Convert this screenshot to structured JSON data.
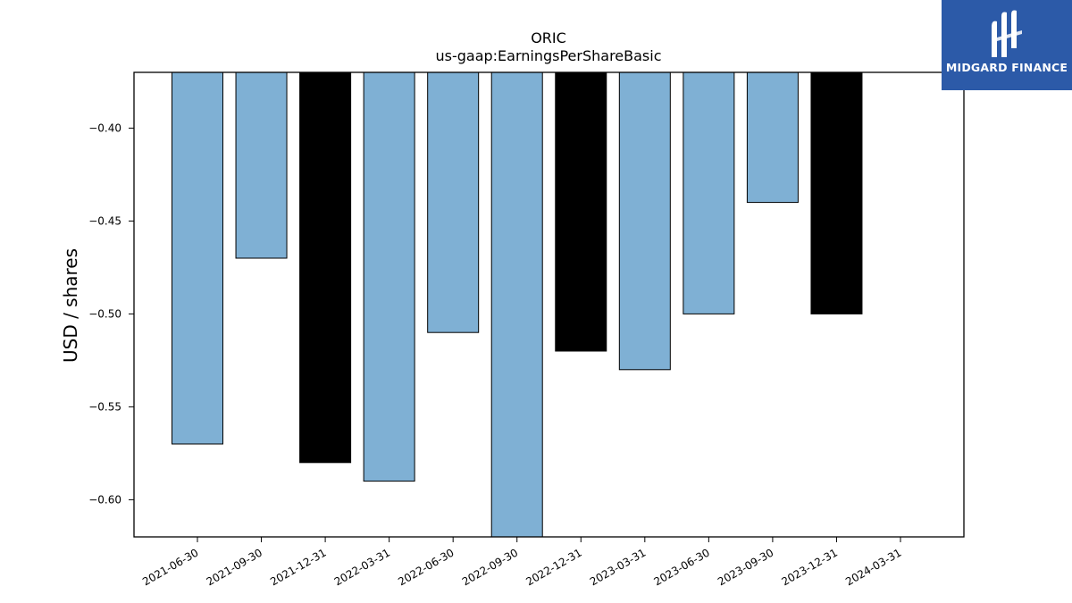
{
  "chart_data": {
    "type": "bar",
    "title": "ORIC",
    "subtitle": "us-gaap:EarningsPerShareBasic",
    "ylabel": "USD / shares",
    "xlabel": "",
    "ylim": [
      -0.62,
      -0.37
    ],
    "yticks": [
      -0.4,
      -0.45,
      -0.5,
      -0.55,
      -0.6
    ],
    "ytick_labels": [
      "−0.40",
      "−0.45",
      "−0.50",
      "−0.55",
      "−0.60"
    ],
    "categories": [
      "2021-06-30",
      "2021-09-30",
      "2021-12-31",
      "2022-03-31",
      "2022-06-30",
      "2022-09-30",
      "2022-12-31",
      "2023-03-31",
      "2023-06-30",
      "2023-09-30",
      "2023-12-31",
      "2024-03-31"
    ],
    "values": [
      -0.57,
      -0.47,
      -0.58,
      -0.59,
      -0.51,
      -0.62,
      -0.52,
      -0.53,
      -0.5,
      -0.44,
      -0.5,
      null
    ],
    "bar_colors": [
      "#7fb0d4",
      "#7fb0d4",
      "#000000",
      "#7fb0d4",
      "#7fb0d4",
      "#7fb0d4",
      "#000000",
      "#7fb0d4",
      "#7fb0d4",
      "#7fb0d4",
      "#000000",
      "#7fb0d4"
    ],
    "grid": false
  },
  "logo": {
    "text": "MIDGARD FINANCE",
    "color": "#2c5aa8"
  }
}
